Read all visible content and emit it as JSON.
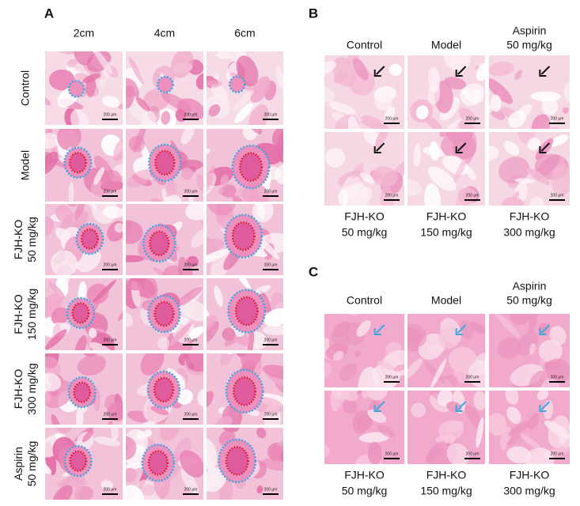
{
  "panel_a": {
    "label": "A",
    "columns": [
      "2cm",
      "4cm",
      "6cm"
    ],
    "rows": [
      [
        "Control"
      ],
      [
        "Model"
      ],
      [
        "FJH-KO",
        "50 mg/kg"
      ],
      [
        "FJH-KO",
        "150 mg/kg"
      ],
      [
        "FJH-KO",
        "300 mg/kg"
      ],
      [
        "Aspirin",
        "50 mg/kg"
      ]
    ]
  },
  "panel_b": {
    "label": "B",
    "top_labels": [
      [
        "Control"
      ],
      [
        "Model"
      ],
      [
        "Aspirin",
        "50 mg/kg"
      ]
    ],
    "bottom_labels": [
      [
        "FJH-KO",
        "50 mg/kg"
      ],
      [
        "FJH-KO",
        "150 mg/kg"
      ],
      [
        "FJH-KO",
        "300 mg/kg"
      ]
    ]
  },
  "panel_c": {
    "label": "C",
    "top_labels": [
      [
        "Control"
      ],
      [
        "Model"
      ],
      [
        "Aspirin",
        "50 mg/kg"
      ]
    ],
    "bottom_labels": [
      [
        "FJH-KO",
        "50 mg/kg"
      ],
      [
        "FJH-KO",
        "150 mg/kg"
      ],
      [
        "FJH-KO",
        "300 mg/kg"
      ]
    ]
  },
  "scale_bar": "200 μm"
}
